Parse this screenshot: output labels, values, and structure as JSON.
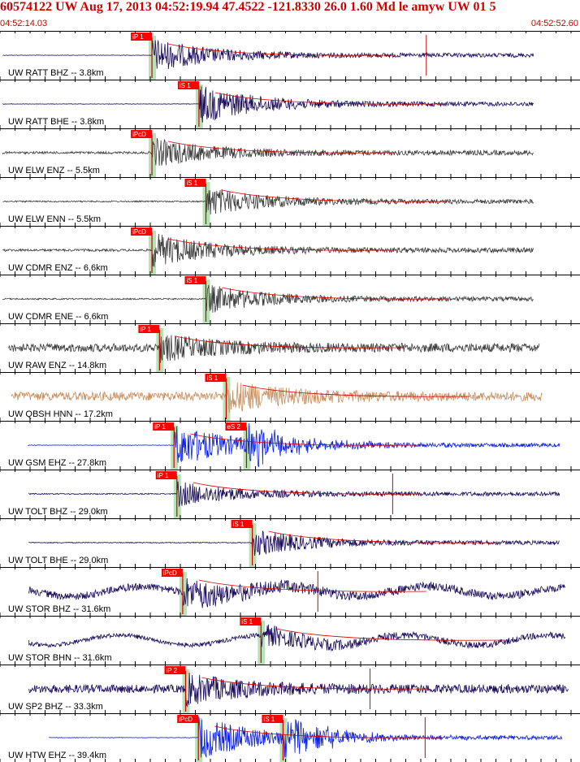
{
  "header": {
    "title": "60574122 UW Aug 17, 2013 04:52:19.94   47.4522 -121.8330 26.0 1.60 Md le amyw UW 01   5",
    "start_time": "04:52:14.03",
    "end_time": "04:52:52.60"
  },
  "colors": {
    "title": "#d00000",
    "pick_flag": "#ff0000",
    "highlight": "#b6e3b6",
    "trace_navy": "#1a0a5a",
    "trace_gray": "#3c3c3c",
    "trace_blue": "#0a1ee6",
    "trace_tan": "#c89060",
    "grid": "#000000"
  },
  "traces": [
    {
      "label": "UW RATT BHZ -- 3.8km",
      "pick": "iP 1",
      "color": "navy",
      "pick_frac": 0.262,
      "end_frac": 0.92,
      "start_frac": 0.005,
      "amp": 0.7,
      "noise": 0.04,
      "flat_pre": true,
      "red_marks": [
        0.735
      ]
    },
    {
      "label": "UW RATT BHE -- 3.8km",
      "pick": "iS 1",
      "color": "navy",
      "pick_frac": 0.343,
      "end_frac": 0.92,
      "start_frac": 0.005,
      "amp": 0.8,
      "noise": 0.04,
      "flat_pre": true,
      "red_marks": []
    },
    {
      "label": "UW ELW ENZ -- 5.5km",
      "pick": "iPcD",
      "color": "gray",
      "pick_frac": 0.262,
      "end_frac": 0.92,
      "start_frac": 0.005,
      "amp": 0.6,
      "noise": 0.08,
      "flat_pre": false,
      "red_marks": []
    },
    {
      "label": "UW ELW ENN -- 5.5km",
      "pick": "iS 1",
      "color": "gray",
      "pick_frac": 0.355,
      "end_frac": 0.92,
      "start_frac": 0.005,
      "amp": 0.6,
      "noise": 0.05,
      "flat_pre": false,
      "red_marks": []
    },
    {
      "label": "UW CDMR ENZ -- 6.6km",
      "pick": "iPcD",
      "color": "gray",
      "pick_frac": 0.262,
      "end_frac": 0.92,
      "start_frac": 0.005,
      "amp": 0.7,
      "noise": 0.08,
      "flat_pre": false,
      "red_marks": []
    },
    {
      "label": "UW CDMR ENE -- 6.6km",
      "pick": "iS 1",
      "color": "gray",
      "pick_frac": 0.355,
      "end_frac": 0.92,
      "start_frac": 0.005,
      "amp": 0.6,
      "noise": 0.05,
      "flat_pre": false,
      "red_marks": []
    },
    {
      "label": "UW RAW ENZ -- 14.8km",
      "pick": "iP 1",
      "color": "gray",
      "pick_frac": 0.275,
      "end_frac": 0.93,
      "start_frac": 0.015,
      "amp": 0.5,
      "noise": 0.28,
      "flat_pre": false,
      "red_marks": []
    },
    {
      "label": "UW QBSH HNN -- 17.2km",
      "pick": "iS 1",
      "color": "tan",
      "pick_frac": 0.39,
      "end_frac": 0.935,
      "start_frac": 0.02,
      "amp": 0.6,
      "noise": 0.3,
      "flat_pre": false,
      "red_marks": []
    },
    {
      "label": "UW GSM EHZ -- 27.8km",
      "pick": "iP 1",
      "color": "blue",
      "pick_frac": 0.3,
      "end_frac": 0.965,
      "start_frac": 0.048,
      "amp": 0.9,
      "noise": 0.03,
      "flat_pre": true,
      "red_marks": [],
      "second_pick": "eS 2",
      "second_frac": 0.425
    },
    {
      "label": "UW TOLT BHZ -- 29.0km",
      "pick": "iP 1",
      "color": "navy",
      "pick_frac": 0.305,
      "end_frac": 0.965,
      "start_frac": 0.05,
      "amp": 0.5,
      "noise": 0.04,
      "flat_pre": false,
      "red_marks": [
        0.677
      ]
    },
    {
      "label": "UW TOLT BHE -- 29.0km",
      "pick": "iS 1",
      "color": "navy",
      "pick_frac": 0.435,
      "end_frac": 0.965,
      "start_frac": 0.05,
      "amp": 0.55,
      "noise": 0.03,
      "flat_pre": false,
      "red_marks": []
    },
    {
      "label": "UW STOR BHZ -- 31.6km",
      "pick": "iPcD",
      "color": "navy",
      "pick_frac": 0.315,
      "end_frac": 0.975,
      "start_frac": 0.05,
      "amp": 0.6,
      "noise": 0.25,
      "flat_pre": false,
      "red_marks": [
        0.548
      ],
      "wavy": true
    },
    {
      "label": "UW STOR BHN -- 31.6km",
      "pick": "iS 1",
      "color": "navy",
      "pick_frac": 0.45,
      "end_frac": 0.975,
      "start_frac": 0.05,
      "amp": 0.4,
      "noise": 0.15,
      "flat_pre": false,
      "red_marks": [],
      "wavy": true
    },
    {
      "label": "UW SP2 BHZ -- 33.3km",
      "pick": "iP 2",
      "color": "navy",
      "pick_frac": 0.32,
      "end_frac": 0.98,
      "start_frac": 0.05,
      "amp": 0.6,
      "noise": 0.28,
      "flat_pre": false,
      "red_marks": [
        0.638
      ]
    },
    {
      "label": "UW HTW EHZ -- 39.4km",
      "pick": "iPcD",
      "color": "blue",
      "pick_frac": 0.342,
      "end_frac": 0.97,
      "start_frac": 0.085,
      "amp": 0.9,
      "noise": 0.03,
      "flat_pre": true,
      "red_marks": [
        0.733
      ],
      "second_pick": "iS 1",
      "second_frac": 0.488
    }
  ]
}
